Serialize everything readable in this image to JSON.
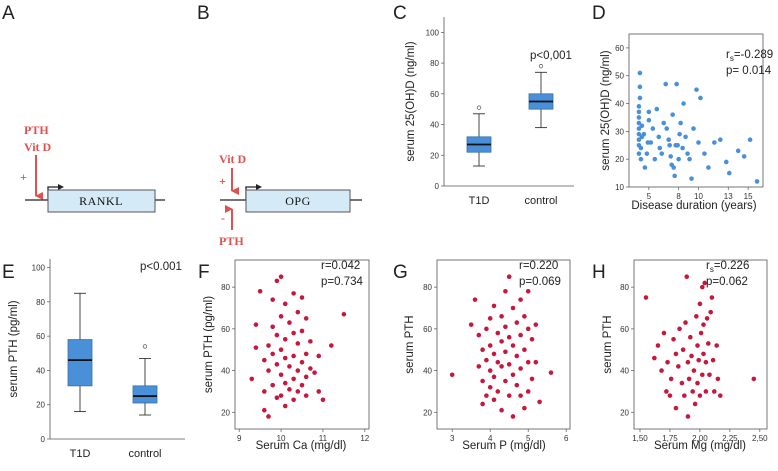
{
  "colors": {
    "box_fill": "#4a90d9",
    "blue_dot": "#4a90d9",
    "red_dot": "#c8173d",
    "red_annot": "#e05050",
    "gene_fill": "#d4eaf7"
  },
  "panels": {
    "A": {
      "label": "A",
      "reg_top": "PTH",
      "reg_mid": "Vit D",
      "sign": "+",
      "gene": "RANKL"
    },
    "B": {
      "label": "B",
      "reg_top": "Vit D",
      "sign_plus": "+",
      "sign_minus": "-",
      "reg_bottom": "PTH",
      "gene": "OPG"
    }
  },
  "chart_data": [
    {
      "panel": "C",
      "type": "box",
      "ylabel": "serum 25(OH)D (ng/ml)",
      "ylim": [
        0,
        110
      ],
      "yticks": [
        0,
        20,
        40,
        60,
        80,
        100
      ],
      "categories": [
        "T1D",
        "control"
      ],
      "boxes": [
        {
          "name": "T1D",
          "min": 13,
          "q1": 22,
          "median": 27,
          "q3": 32,
          "max": 47,
          "outliers": [
            51
          ]
        },
        {
          "name": "control",
          "min": 38,
          "q1": 50,
          "median": 55,
          "q3": 60,
          "max": 74,
          "outliers": [
            78
          ]
        }
      ],
      "annotation": "p<0,001"
    },
    {
      "panel": "D",
      "type": "scatter",
      "xlabel": "Disease duration (years)",
      "ylabel": "serum 25(OH)D (ng/ml)",
      "xlim": [
        3,
        16.5
      ],
      "ylim": [
        10,
        65
      ],
      "xticks": [
        "5",
        "8",
        "10",
        "13",
        "15"
      ],
      "xtick_values": [
        5,
        8,
        10,
        13,
        15
      ],
      "yticks": [
        10,
        20,
        30,
        40,
        50,
        60
      ],
      "stat_r_prefix": "r",
      "stat_r_sub": "s",
      "stat_r_value": "=-0.289",
      "stat_p": "p= 0.014",
      "points": [
        [
          4.0,
          22
        ],
        [
          4.0,
          25
        ],
        [
          4.0,
          27
        ],
        [
          4.0,
          29
        ],
        [
          4.0,
          31
        ],
        [
          4.0,
          33
        ],
        [
          4.0,
          35
        ],
        [
          4.0,
          37
        ],
        [
          4.0,
          39
        ],
        [
          4.1,
          42
        ],
        [
          4.1,
          46
        ],
        [
          4.1,
          51
        ],
        [
          4.2,
          20
        ],
        [
          4.2,
          24
        ],
        [
          4.3,
          28
        ],
        [
          4.3,
          32
        ],
        [
          4.5,
          29
        ],
        [
          4.6,
          17
        ],
        [
          4.8,
          22
        ],
        [
          4.9,
          26
        ],
        [
          5.0,
          34
        ],
        [
          5.0,
          37
        ],
        [
          5.2,
          26
        ],
        [
          5.4,
          31
        ],
        [
          5.6,
          20
        ],
        [
          5.8,
          38
        ],
        [
          6.0,
          28
        ],
        [
          6.1,
          24
        ],
        [
          6.3,
          22
        ],
        [
          6.5,
          33
        ],
        [
          6.7,
          47
        ],
        [
          6.8,
          31
        ],
        [
          7.0,
          27
        ],
        [
          7.1,
          25
        ],
        [
          7.2,
          21
        ],
        [
          7.3,
          18
        ],
        [
          7.4,
          36
        ],
        [
          7.5,
          17
        ],
        [
          7.6,
          14
        ],
        [
          7.7,
          25
        ],
        [
          7.8,
          47
        ],
        [
          7.9,
          25
        ],
        [
          8.0,
          20
        ],
        [
          8.1,
          29
        ],
        [
          8.2,
          33
        ],
        [
          8.4,
          24
        ],
        [
          8.5,
          40
        ],
        [
          8.7,
          28
        ],
        [
          8.9,
          22
        ],
        [
          9.1,
          20
        ],
        [
          9.3,
          13
        ],
        [
          9.5,
          31
        ],
        [
          9.8,
          45
        ],
        [
          10.0,
          26
        ],
        [
          10.2,
          42
        ],
        [
          10.6,
          22
        ],
        [
          11.0,
          17
        ],
        [
          11.6,
          26
        ],
        [
          12.2,
          27
        ],
        [
          12.8,
          19
        ],
        [
          13.1,
          15
        ],
        [
          14.0,
          23
        ],
        [
          14.6,
          21
        ],
        [
          15.2,
          27
        ],
        [
          15.9,
          12
        ]
      ]
    },
    {
      "panel": "E",
      "type": "box",
      "ylabel": "serum PTH (pg/ml)",
      "ylim": [
        0,
        105
      ],
      "yticks": [
        0,
        20,
        40,
        60,
        80,
        100
      ],
      "categories": [
        "T1D",
        "control"
      ],
      "boxes": [
        {
          "name": "T1D",
          "min": 16,
          "q1": 31,
          "median": 46,
          "q3": 58,
          "max": 85,
          "outliers": []
        },
        {
          "name": "control",
          "min": 14,
          "q1": 21,
          "median": 25,
          "q3": 31,
          "max": 47,
          "outliers": [
            54
          ]
        }
      ],
      "annotation": "p<0.001"
    },
    {
      "panel": "F",
      "type": "scatter",
      "xlabel": "Serum Ca (mg/dl)",
      "ylabel": "serum PTH (pg/ml)",
      "xlim": [
        8.9,
        12.1
      ],
      "ylim": [
        12,
        93
      ],
      "xticks": [
        "9",
        "10",
        "11",
        "12"
      ],
      "xtick_values": [
        9,
        10,
        11,
        12
      ],
      "yticks": [
        20,
        40,
        60,
        80
      ],
      "stat_r": "r=0.042",
      "stat_p": "p=0.734",
      "points": [
        [
          9.3,
          36
        ],
        [
          9.4,
          51
        ],
        [
          9.4,
          62
        ],
        [
          9.5,
          78
        ],
        [
          9.6,
          45
        ],
        [
          9.6,
          30
        ],
        [
          9.6,
          21
        ],
        [
          9.7,
          40
        ],
        [
          9.7,
          52
        ],
        [
          9.7,
          18
        ],
        [
          9.8,
          74
        ],
        [
          9.8,
          61
        ],
        [
          9.8,
          48
        ],
        [
          9.8,
          33
        ],
        [
          9.9,
          43
        ],
        [
          9.9,
          83
        ],
        [
          9.9,
          57
        ],
        [
          9.9,
          27
        ],
        [
          10.0,
          85
        ],
        [
          10.0,
          66
        ],
        [
          10.0,
          50
        ],
        [
          10.0,
          38
        ],
        [
          10.0,
          28
        ],
        [
          10.1,
          72
        ],
        [
          10.1,
          55
        ],
        [
          10.1,
          46
        ],
        [
          10.1,
          34
        ],
        [
          10.1,
          23
        ],
        [
          10.2,
          63
        ],
        [
          10.2,
          42
        ],
        [
          10.2,
          31
        ],
        [
          10.3,
          77
        ],
        [
          10.3,
          58
        ],
        [
          10.3,
          47
        ],
        [
          10.3,
          36
        ],
        [
          10.3,
          26
        ],
        [
          10.4,
          68
        ],
        [
          10.4,
          53
        ],
        [
          10.4,
          40
        ],
        [
          10.4,
          30
        ],
        [
          10.5,
          59
        ],
        [
          10.5,
          44
        ],
        [
          10.5,
          33
        ],
        [
          10.5,
          75
        ],
        [
          10.6,
          65
        ],
        [
          10.6,
          48
        ],
        [
          10.6,
          37
        ],
        [
          10.6,
          28
        ],
        [
          10.7,
          54
        ],
        [
          10.7,
          41
        ],
        [
          10.8,
          39
        ],
        [
          10.9,
          30
        ],
        [
          10.9,
          47
        ],
        [
          11.0,
          26
        ],
        [
          11.2,
          52
        ],
        [
          11.5,
          67
        ]
      ]
    },
    {
      "panel": "G",
      "type": "scatter",
      "xlabel": "Serum P  (mg/dl)",
      "ylabel": "serum PTH",
      "xlim": [
        2.6,
        6.1
      ],
      "ylim": [
        12,
        93
      ],
      "xticks": [
        "3",
        "4",
        "5",
        "6"
      ],
      "xtick_values": [
        3,
        4,
        5,
        6
      ],
      "yticks": [
        20,
        40,
        60,
        80
      ],
      "stat_r": "r=0.220",
      "stat_p": "p=0.069",
      "points": [
        [
          3.0,
          38
        ],
        [
          3.5,
          62
        ],
        [
          3.6,
          74
        ],
        [
          3.7,
          57
        ],
        [
          3.7,
          42
        ],
        [
          3.8,
          50
        ],
        [
          3.8,
          35
        ],
        [
          3.8,
          24
        ],
        [
          3.9,
          60
        ],
        [
          3.9,
          45
        ],
        [
          3.9,
          28
        ],
        [
          4.0,
          65
        ],
        [
          4.0,
          52
        ],
        [
          4.0,
          40
        ],
        [
          4.0,
          32
        ],
        [
          4.1,
          71
        ],
        [
          4.1,
          48
        ],
        [
          4.1,
          37
        ],
        [
          4.1,
          26
        ],
        [
          4.2,
          58
        ],
        [
          4.2,
          44
        ],
        [
          4.2,
          30
        ],
        [
          4.3,
          66
        ],
        [
          4.3,
          54
        ],
        [
          4.3,
          42
        ],
        [
          4.3,
          21
        ],
        [
          4.4,
          78
        ],
        [
          4.4,
          61
        ],
        [
          4.4,
          49
        ],
        [
          4.4,
          35
        ],
        [
          4.5,
          85
        ],
        [
          4.5,
          56
        ],
        [
          4.5,
          43
        ],
        [
          4.5,
          28
        ],
        [
          4.6,
          70
        ],
        [
          4.6,
          52
        ],
        [
          4.6,
          38
        ],
        [
          4.6,
          18
        ],
        [
          4.7,
          63
        ],
        [
          4.7,
          47
        ],
        [
          4.7,
          33
        ],
        [
          4.8,
          74
        ],
        [
          4.8,
          57
        ],
        [
          4.8,
          41
        ],
        [
          4.8,
          28
        ],
        [
          4.9,
          66
        ],
        [
          4.9,
          50
        ],
        [
          4.9,
          22
        ],
        [
          5.0,
          78
        ],
        [
          5.0,
          60
        ],
        [
          5.0,
          44
        ],
        [
          5.0,
          30
        ],
        [
          5.1,
          55
        ],
        [
          5.1,
          36
        ],
        [
          5.2,
          62
        ],
        [
          5.2,
          44
        ],
        [
          5.3,
          25
        ],
        [
          5.6,
          39
        ]
      ]
    },
    {
      "panel": "H",
      "type": "scatter",
      "xlabel": "Serum Mg  (mg/dl)",
      "ylabel": "serum PTH",
      "xlim": [
        1.45,
        2.56
      ],
      "ylim": [
        12,
        93
      ],
      "xticks": [
        "1,50",
        "1,75",
        "2,00",
        "2,25",
        "2,50"
      ],
      "xtick_values": [
        1.5,
        1.75,
        2.0,
        2.25,
        2.5
      ],
      "yticks": [
        20,
        40,
        60,
        80
      ],
      "stat_r_prefix": "r",
      "stat_r_sub": "s",
      "stat_r_value": "=0.226",
      "stat_p": "p=0.062",
      "points": [
        [
          1.55,
          75
        ],
        [
          1.62,
          46
        ],
        [
          1.65,
          52
        ],
        [
          1.68,
          40
        ],
        [
          1.7,
          58
        ],
        [
          1.72,
          30
        ],
        [
          1.73,
          44
        ],
        [
          1.75,
          28
        ],
        [
          1.76,
          36
        ],
        [
          1.78,
          55
        ],
        [
          1.8,
          48
        ],
        [
          1.8,
          22
        ],
        [
          1.82,
          42
        ],
        [
          1.83,
          60
        ],
        [
          1.85,
          34
        ],
        [
          1.86,
          50
        ],
        [
          1.87,
          28
        ],
        [
          1.88,
          63
        ],
        [
          1.89,
          85
        ],
        [
          1.9,
          44
        ],
        [
          1.9,
          18
        ],
        [
          1.91,
          36
        ],
        [
          1.92,
          56
        ],
        [
          1.93,
          47
        ],
        [
          1.94,
          30
        ],
        [
          1.95,
          40
        ],
        [
          1.96,
          24
        ],
        [
          1.97,
          66
        ],
        [
          1.98,
          52
        ],
        [
          1.98,
          34
        ],
        [
          1.99,
          45
        ],
        [
          2.0,
          72
        ],
        [
          2.0,
          28
        ],
        [
          2.01,
          58
        ],
        [
          2.02,
          80
        ],
        [
          2.02,
          38
        ],
        [
          2.03,
          62
        ],
        [
          2.03,
          48
        ],
        [
          2.04,
          82
        ],
        [
          2.05,
          44
        ],
        [
          2.05,
          30
        ],
        [
          2.06,
          65
        ],
        [
          2.07,
          53
        ],
        [
          2.08,
          38
        ],
        [
          2.09,
          68
        ],
        [
          2.1,
          75
        ],
        [
          2.11,
          45
        ],
        [
          2.12,
          30
        ],
        [
          2.14,
          52
        ],
        [
          2.15,
          36
        ],
        [
          2.17,
          28
        ],
        [
          2.45,
          36
        ]
      ]
    }
  ]
}
